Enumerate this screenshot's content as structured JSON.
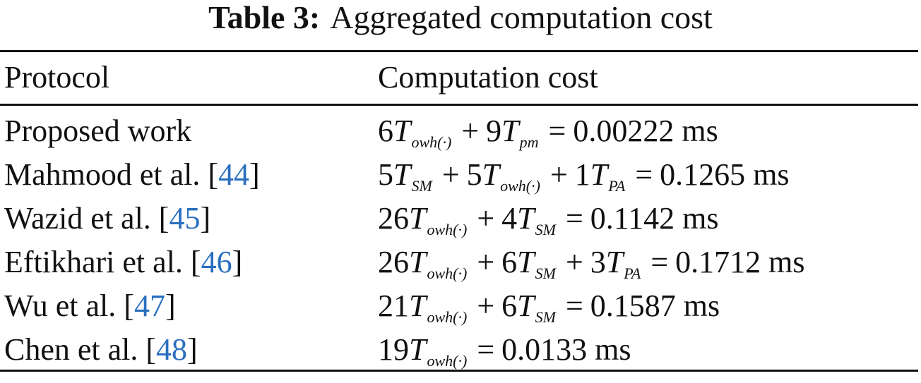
{
  "caption": {
    "label": "Table 3:",
    "text": "Aggregated computation cost"
  },
  "table": {
    "columns": [
      "Protocol",
      "Computation cost"
    ],
    "rows": [
      {
        "protocol": "Proposed work",
        "citation": "",
        "terms": [
          {
            "coef": "6",
            "sub": "owh(·)"
          },
          {
            "coef": "9",
            "sub": "pm"
          }
        ],
        "result": "0.00222 ms"
      },
      {
        "protocol": "Mahmood et al.",
        "citation": "44",
        "terms": [
          {
            "coef": "5",
            "sub": "SM"
          },
          {
            "coef": "5",
            "sub": "owh(·)"
          },
          {
            "coef": "1",
            "sub": "PA"
          }
        ],
        "result": "0.1265 ms"
      },
      {
        "protocol": "Wazid et al.",
        "citation": "45",
        "terms": [
          {
            "coef": "26",
            "sub": "owh(·)"
          },
          {
            "coef": "4",
            "sub": "SM"
          }
        ],
        "result": "0.1142 ms"
      },
      {
        "protocol": "Eftikhari et al.",
        "citation": "46",
        "terms": [
          {
            "coef": "26",
            "sub": "owh(·)"
          },
          {
            "coef": "6",
            "sub": "SM"
          },
          {
            "coef": "3",
            "sub": "PA"
          }
        ],
        "result": "0.1712 ms"
      },
      {
        "protocol": "Wu et al.",
        "citation": "47",
        "terms": [
          {
            "coef": "21",
            "sub": "owh(·)"
          },
          {
            "coef": "6",
            "sub": "SM"
          }
        ],
        "result": "0.1587 ms"
      },
      {
        "protocol": "Chen et al.",
        "citation": "48",
        "terms": [
          {
            "coef": "19",
            "sub": "owh(·)"
          }
        ],
        "result": "0.0133 ms"
      }
    ]
  },
  "symbols": {
    "variable": "T",
    "plus": "+",
    "equals": "=",
    "bracket_open": "[",
    "bracket_close": "]"
  },
  "colors": {
    "text": "#111111",
    "citation_link": "#2a6fc0"
  }
}
